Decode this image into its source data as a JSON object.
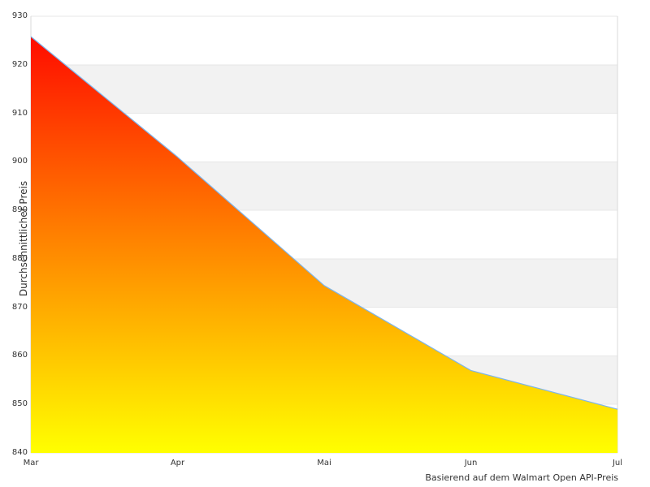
{
  "chart_data": {
    "type": "area",
    "title": "",
    "ylabel": "Durchschnittlicher Preis",
    "xlabel": "",
    "caption": "Basierend auf dem Walmart Open API-Preis",
    "categories": [
      "Mar",
      "Apr",
      "Mai",
      "Jun",
      "Jul"
    ],
    "series": [
      {
        "name": "Durchschnittlicher Preis",
        "values": [
          925.8,
          901,
          874.5,
          857,
          849
        ]
      }
    ],
    "ylim": [
      840,
      930
    ],
    "y_ticks": [
      840,
      850,
      860,
      870,
      880,
      890,
      900,
      910,
      920,
      930
    ],
    "grid": "alternating horizontal bands every 10 units",
    "legend": "none",
    "colors": {
      "line": "#7cb5ec",
      "area_gradient_top": "#ff0000",
      "area_gradient_mid": "#ff8000",
      "area_gradient_bottom": "#ffff00",
      "band_fill": "#f2f2f2",
      "gridline": "#e7e7e7",
      "axis_border": "#d9d9d9",
      "text": "#333333",
      "background": "#ffffff"
    }
  }
}
